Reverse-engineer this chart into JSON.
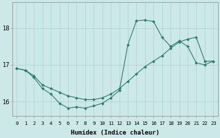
{
  "xlabel": "Humidex (Indice chaleur)",
  "xlim": [
    -0.5,
    23.5
  ],
  "ylim": [
    15.6,
    18.7
  ],
  "yticks": [
    16,
    17,
    18
  ],
  "xticks": [
    0,
    1,
    2,
    3,
    4,
    5,
    6,
    7,
    8,
    9,
    10,
    11,
    12,
    13,
    14,
    15,
    16,
    17,
    18,
    19,
    20,
    21,
    22,
    23
  ],
  "xtick_labels": [
    "0",
    "1",
    "2",
    "3",
    "4",
    "5",
    "6",
    "7",
    "8",
    "9",
    "10",
    "11",
    "12",
    "13",
    "14",
    "15",
    "16",
    "17",
    "18",
    "19",
    "20",
    "21",
    "22",
    "23"
  ],
  "line_color": "#2a7d6b",
  "bg_color": "#cde8e8",
  "grid_color": "#aed0d0",
  "line1_x": [
    0,
    1,
    2,
    3,
    4,
    5,
    6,
    7,
    8,
    9,
    10,
    11,
    12,
    13,
    14,
    15,
    16,
    17,
    18,
    19,
    20,
    21,
    22,
    23
  ],
  "line1_y": [
    16.9,
    16.85,
    16.65,
    16.35,
    16.2,
    15.95,
    15.82,
    15.85,
    15.82,
    15.88,
    15.95,
    16.1,
    16.3,
    17.55,
    18.2,
    18.22,
    18.18,
    17.75,
    17.5,
    17.65,
    17.5,
    17.05,
    17.0,
    17.1
  ],
  "line2_x": [
    0,
    1,
    2,
    3,
    4,
    5,
    6,
    7,
    8,
    9,
    10,
    11,
    12,
    13,
    14,
    15,
    16,
    17,
    18,
    19,
    20,
    21,
    22,
    23
  ],
  "line2_y": [
    16.9,
    16.85,
    16.7,
    16.45,
    16.35,
    16.25,
    16.15,
    16.1,
    16.05,
    16.05,
    16.1,
    16.2,
    16.35,
    16.55,
    16.75,
    16.95,
    17.1,
    17.25,
    17.45,
    17.62,
    17.7,
    17.75,
    17.1,
    17.1
  ]
}
